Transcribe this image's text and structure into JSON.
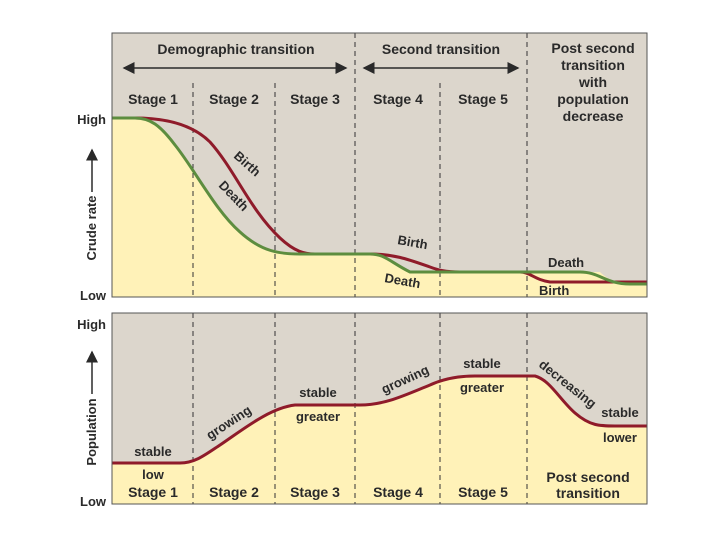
{
  "colors": {
    "panel_bg": "#dcd6cc",
    "fill": "#fff2b8",
    "birth": "#8f1b2a",
    "death": "#5d8d3f",
    "population": "#8f1b2a",
    "frame": "#555555"
  },
  "headers": {
    "demographic": "Demographic transition",
    "second": "Second transition",
    "post": [
      "Post second",
      "transition",
      "with",
      "population",
      "decrease"
    ]
  },
  "stages": [
    "Stage 1",
    "Stage 2",
    "Stage 3",
    "Stage 4",
    "Stage 5"
  ],
  "top_panel": {
    "y_title": "Crude rate",
    "y_high": "High",
    "y_low": "Low",
    "labels": {
      "birth_1": "Birth",
      "death_1": "Death",
      "birth_2": "Birth",
      "death_2": "Death",
      "death_3": "Death",
      "birth_3": "Birth"
    }
  },
  "bottom_panel": {
    "y_title": "Population",
    "y_high": "High",
    "y_low": "Low",
    "labels": {
      "stable_1": "stable",
      "low": "low",
      "growing_1": "growing",
      "stable_2": "stable",
      "greater_1": "greater",
      "growing_2": "growing",
      "stable_3": "stable",
      "greater_2": "greater",
      "decreasing": "decreasing",
      "stable_4": "stable",
      "lower": "lower"
    },
    "post": [
      "Post second",
      "transition"
    ]
  }
}
